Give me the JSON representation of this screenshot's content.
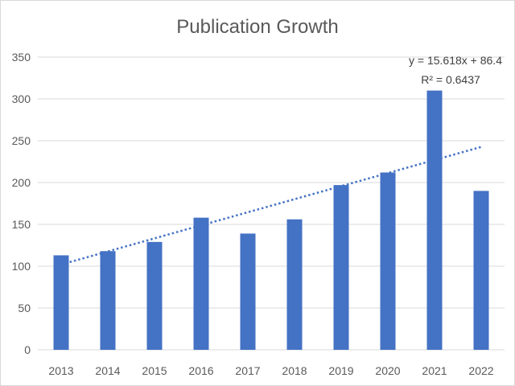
{
  "chart_data": {
    "type": "bar",
    "title": "Publication Growth",
    "xlabel": "",
    "ylabel": "",
    "categories": [
      "2013",
      "2014",
      "2015",
      "2016",
      "2017",
      "2018",
      "2019",
      "2020",
      "2021",
      "2022"
    ],
    "values": [
      113,
      118,
      129,
      158,
      139,
      156,
      197,
      212,
      310,
      190
    ],
    "ylim": [
      0,
      350
    ],
    "yticks": [
      "0",
      "50",
      "100",
      "150",
      "200",
      "250",
      "300",
      "350"
    ],
    "grid": true,
    "bar_color": "#4472c4",
    "trendline": {
      "type": "linear",
      "style": "dotted",
      "slope": 15.618,
      "intercept": 86.4,
      "equation_label": "y = 15.618x + 86.4",
      "r2_label": "R² = 0.6437"
    }
  }
}
